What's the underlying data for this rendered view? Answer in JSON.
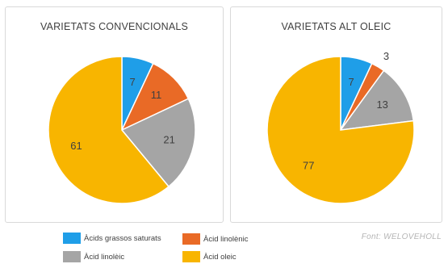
{
  "colors": {
    "saturated": "#1f9ee8",
    "linolenic": "#e96a26",
    "linoleic": "#a5a5a5",
    "oleic": "#f8b500"
  },
  "chart_data": [
    {
      "type": "pie",
      "title": "VARIETATS CONVENCIONALS",
      "labels": [
        "Àcids grassos saturats",
        "Àcid linolènic",
        "Àcid linolèic",
        "Àcid oleic"
      ],
      "values": [
        7,
        11,
        21,
        61
      ],
      "start": "12 o'clock",
      "direction": "clockwise"
    },
    {
      "type": "pie",
      "title": "VARIETATS ALT OLEIC",
      "labels": [
        "Àcids grassos saturats",
        "Àcid linolènic",
        "Àcid linolèic",
        "Àcid oleic"
      ],
      "values": [
        7,
        3,
        13,
        77
      ],
      "start": "12 o'clock",
      "direction": "clockwise"
    }
  ],
  "legend": [
    {
      "label": "Àcids grassos saturats",
      "color_key": "saturated"
    },
    {
      "label": "Àcid linolènic",
      "color_key": "linolenic"
    },
    {
      "label": "Àcid linolèic",
      "color_key": "linoleic"
    },
    {
      "label": "Àcid oleic",
      "color_key": "oleic"
    }
  ],
  "source": "Font: WELOVEHOLL"
}
